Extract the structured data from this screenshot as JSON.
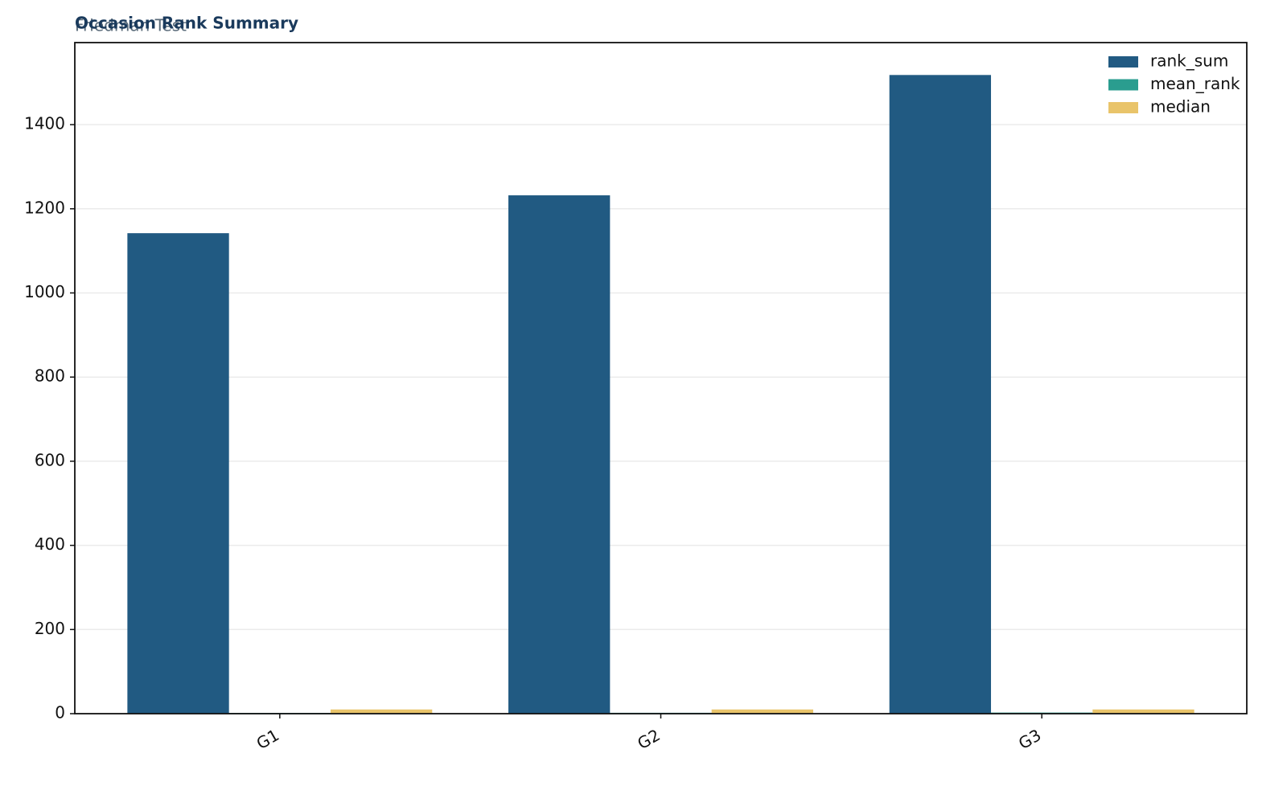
{
  "chart_data": {
    "type": "bar",
    "title": "Occasion Rank Summary",
    "subtitle": "Friedman Test",
    "categories": [
      "G1",
      "G2",
      "G3"
    ],
    "series": [
      {
        "name": "rank_sum",
        "color": "#215a82",
        "values": [
          1142,
          1232,
          1518
        ]
      },
      {
        "name": "mean_rank",
        "color": "#2a9d8f",
        "values": [
          1.9,
          2.1,
          2.6
        ]
      },
      {
        "name": "median",
        "color": "#e9c46a",
        "values": [
          10,
          10,
          10
        ]
      }
    ],
    "ylim": [
      0,
      1595
    ],
    "yticks": [
      0,
      200,
      400,
      600,
      800,
      1000,
      1200,
      1400
    ],
    "grid": true,
    "legend": "upper right"
  }
}
